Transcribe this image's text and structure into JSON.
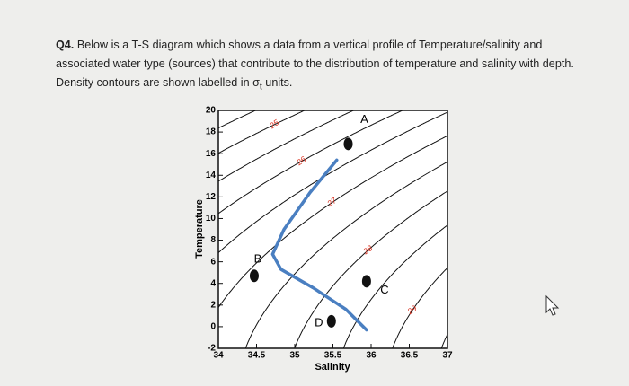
{
  "question": {
    "number": "Q4.",
    "text": "Below is a T-S diagram which shows a data from a vertical profile of Temperature/salinity and associated water type (sources) that contribute to the distribution of temperature and salinity with depth. Density contours are shown labelled in σ",
    "subscript": "t",
    "end": " units."
  },
  "chart_data": {
    "type": "ts-diagram",
    "x_label": "Salinity",
    "y_label": "Temperature",
    "xlim": [
      34,
      37
    ],
    "xticks": [
      34,
      34.5,
      35,
      35.5,
      36,
      36.5,
      37
    ],
    "ylim": [
      -2,
      20
    ],
    "yticks": [
      -2,
      0,
      2,
      4,
      6,
      8,
      10,
      12,
      14,
      16,
      18,
      20
    ],
    "contours": {
      "levels": [
        24,
        24.5,
        25,
        25.5,
        26,
        26.5,
        27,
        27.5,
        28,
        28.5,
        29,
        29.5
      ],
      "labelled": [
        25,
        26,
        27,
        28,
        29
      ],
      "color": "#111111",
      "label_color": "#d9301f"
    },
    "profile": {
      "x": [
        35.55,
        35.2,
        34.86,
        34.71,
        34.82,
        35.24,
        35.67,
        35.94
      ],
      "y": [
        15.4,
        12.4,
        9.0,
        6.7,
        5.3,
        3.6,
        1.6,
        -0.3
      ],
      "color": "#4a7fc1"
    },
    "water_types": {
      "labels": [
        "A",
        "B",
        "C",
        "D"
      ],
      "x": [
        35.7,
        34.47,
        35.94,
        35.48
      ],
      "y": [
        16.9,
        4.7,
        4.2,
        0.5
      ],
      "color": "#111111"
    }
  }
}
